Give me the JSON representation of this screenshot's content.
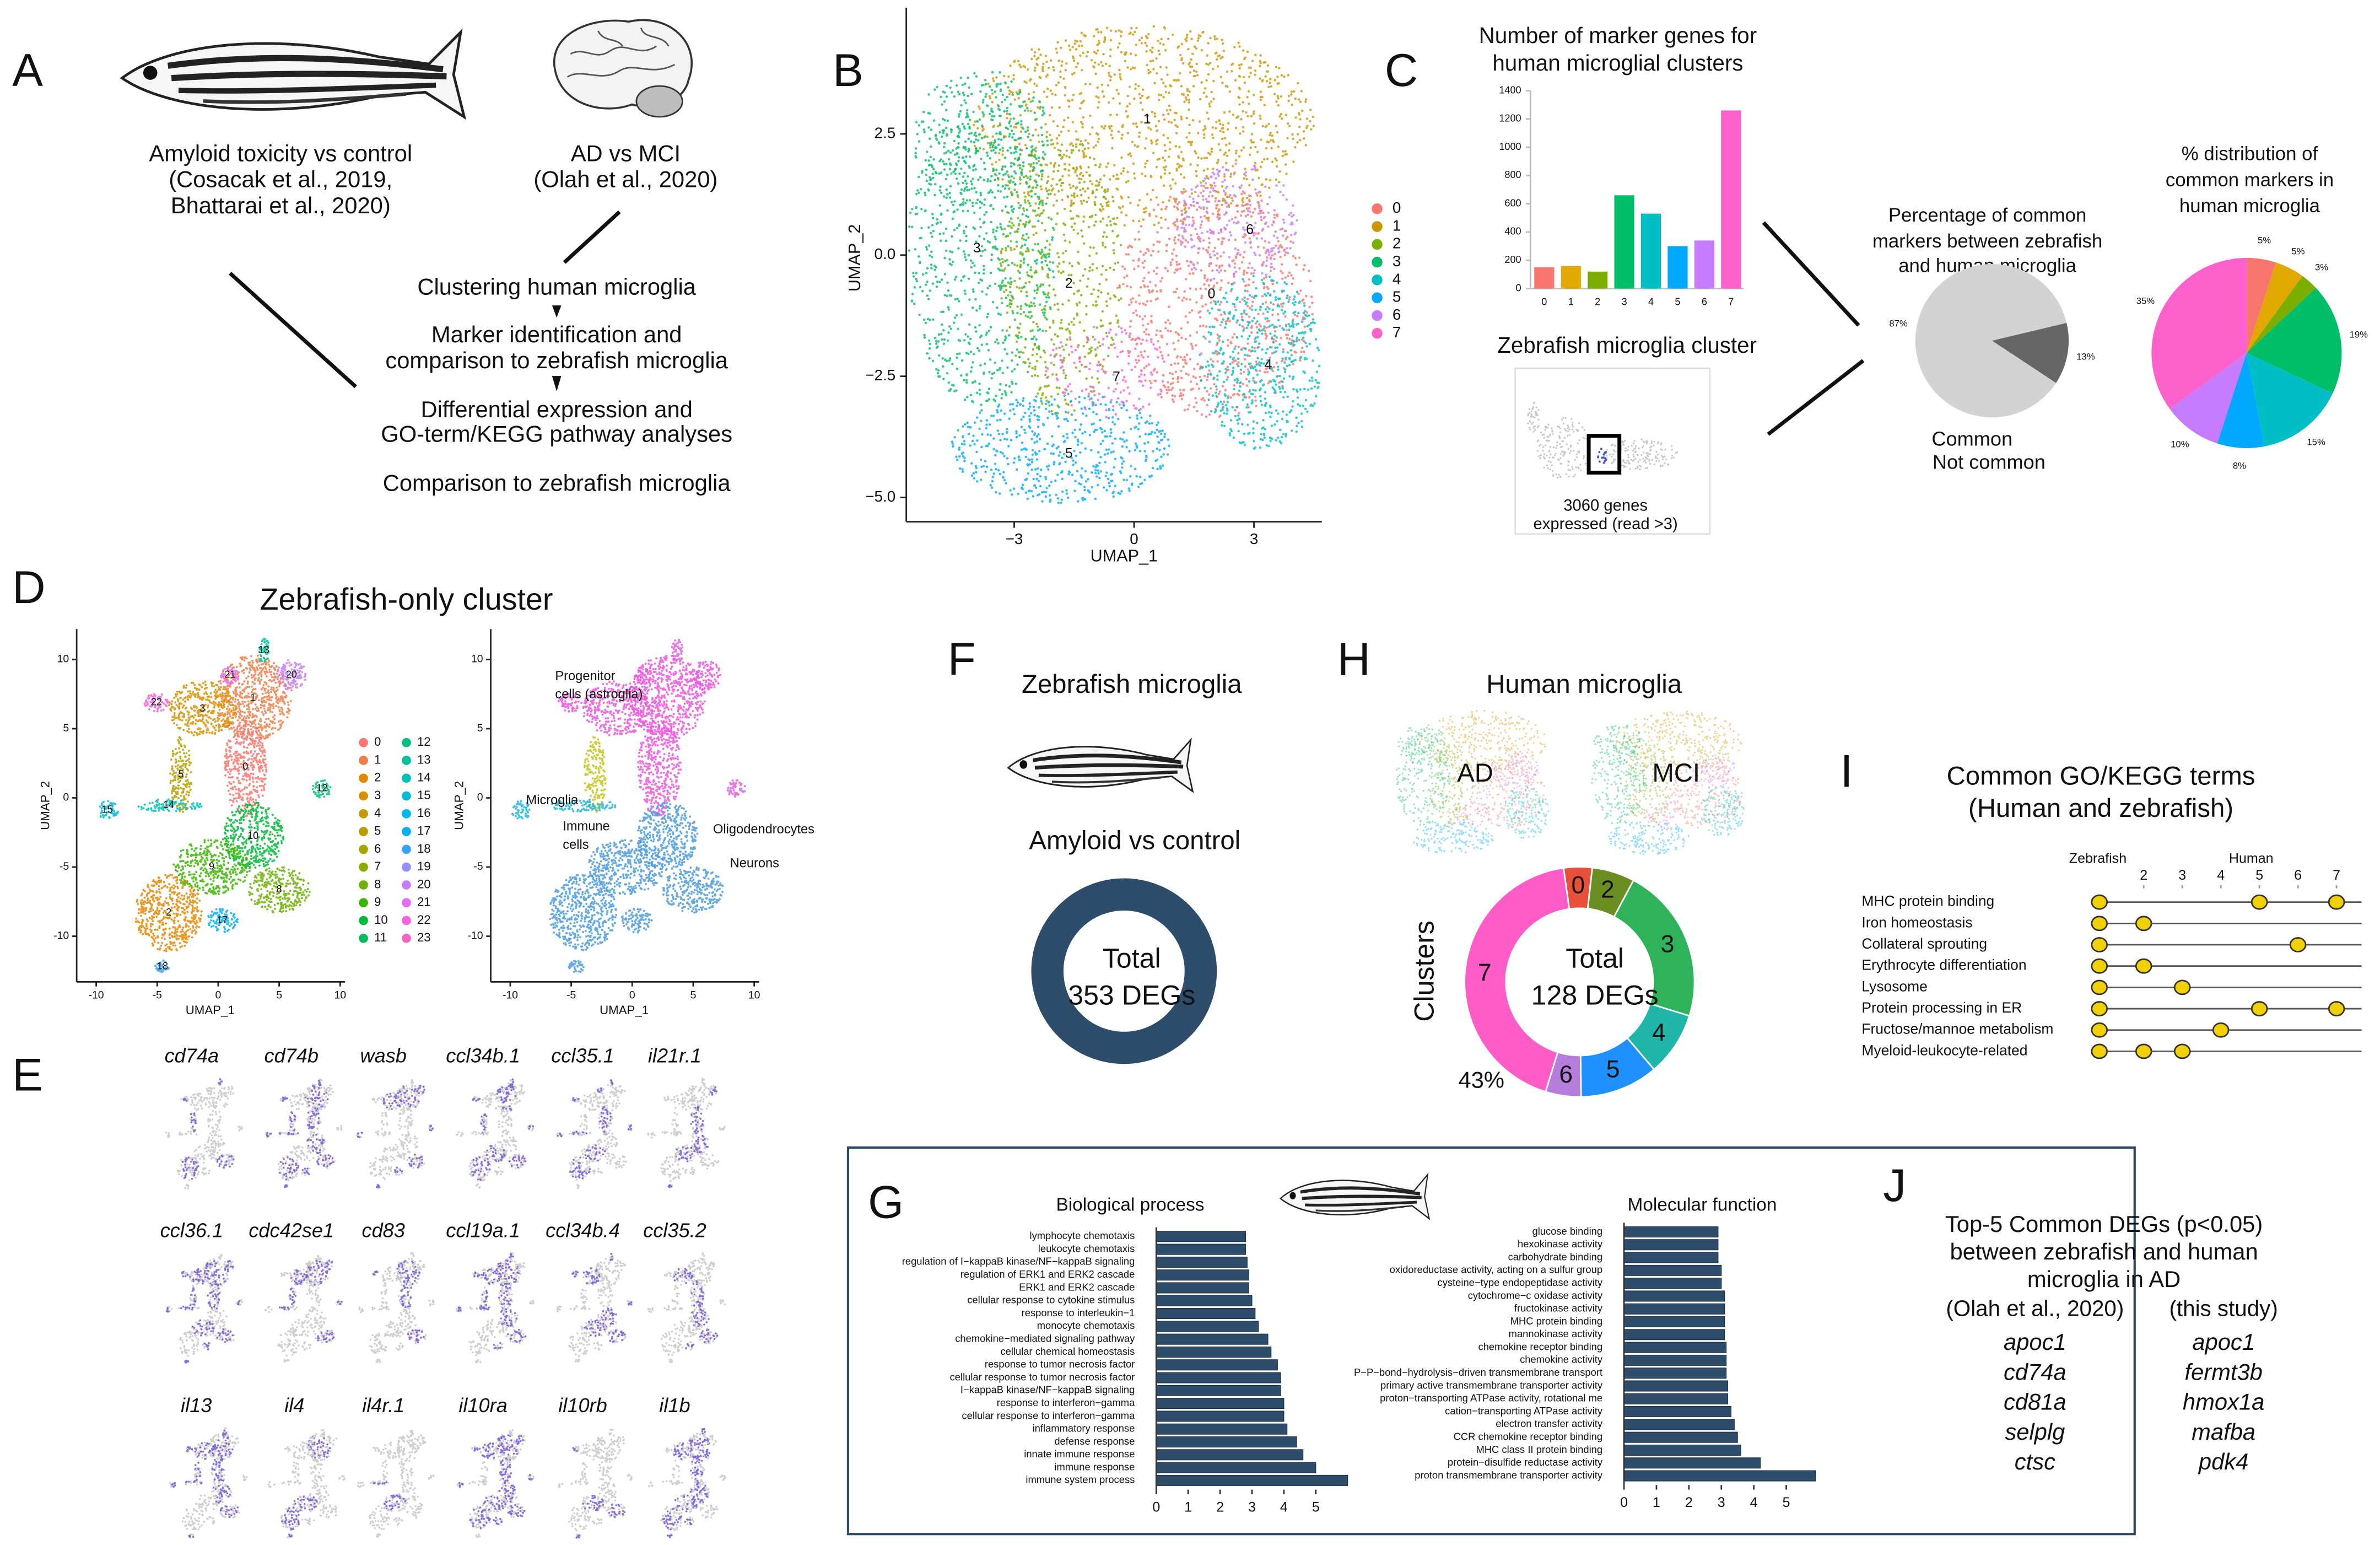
{
  "panel_labels": [
    "A",
    "B",
    "C",
    "D",
    "E",
    "F",
    "G",
    "H",
    "I",
    "J"
  ],
  "panel_a": {
    "zebrafish_comparison": [
      "Amyloid toxicity vs control",
      "(Cosacak et al., 2019,",
      "Bhattarai et al., 2020)"
    ],
    "human_comparison": [
      "AD vs MCI",
      "(Olah et al., 2020)"
    ],
    "steps": [
      [
        "Clustering human microglia"
      ],
      [
        "Marker identification and",
        "comparison to zebrafish microglia"
      ],
      [
        "Differential expression and",
        "GO-term/KEGG pathway analyses"
      ],
      [
        "Comparison to zebrafish microglia"
      ]
    ]
  },
  "panel_c": {
    "cluster_title": "Zebrafish microglia cluster",
    "cluster_note": [
      "3060 genes",
      "expressed (read >3)"
    ]
  },
  "panel_d": {
    "title": "Zebrafish-only cluster"
  },
  "panel_e": {
    "genes": [
      [
        "cd74a",
        "cd74b",
        "wasb",
        "ccl34b.1",
        "ccl35.1",
        "il21r.1"
      ],
      [
        "ccl36.1",
        "cdc42se1",
        "cd83",
        "ccl19a.1",
        "ccl34b.4",
        "ccl35.2"
      ],
      [
        "il13",
        "il4",
        "il4r.1",
        "il10ra",
        "il10rb",
        "il1b"
      ]
    ]
  },
  "panel_f": {
    "title": "Zebrafish microglia",
    "subtitle": "Amyloid vs control",
    "center_label": [
      "Total",
      "353 DEGs"
    ]
  },
  "panel_h": {
    "title": "Human microglia",
    "groups": [
      "AD",
      "MCI"
    ]
  },
  "panel_j": {
    "title": [
      "Top-5 Common DEGs (p<0.05)",
      "between zebrafish and human",
      "microglia in AD"
    ],
    "sources": [
      {
        "name": "(Olah et al., 2020)",
        "color": "#7030a0",
        "gene_color": "#a050c0",
        "genes": [
          "apoc1",
          "cd74a",
          "cd81a",
          "selplg",
          "ctsc"
        ]
      },
      {
        "name": "(this study)",
        "color": "#b2182b",
        "gene_color": "#c0161f",
        "genes": [
          "apoc1",
          "fermt3b",
          "hmox1a",
          "mafba",
          "pdk4"
        ]
      }
    ]
  },
  "chart_data": [
    {
      "type": "scatter",
      "xlabel": "UMAP_1",
      "ylabel": "UMAP_2",
      "xlim": [
        -5.7,
        4.7
      ],
      "ylim": [
        -5.5,
        5.1
      ],
      "xticks": [
        {
          "value": -3,
          "label": "−3"
        },
        0,
        3
      ],
      "yticks": [
        {
          "value": -5,
          "label": "−5.0"
        },
        {
          "value": -2.5,
          "label": "−2.5"
        },
        {
          "value": 0,
          "label": "0.0"
        },
        2.5
      ],
      "legend": {
        "categories": [
          "0",
          "1",
          "2",
          "3",
          "4",
          "5",
          "6",
          "7"
        ],
        "colors": [
          "#F8766D",
          "#CD9600",
          "#7CAE00",
          "#00BE67",
          "#00BFC4",
          "#00A9FF",
          "#C77CFF",
          "#FF61CC"
        ]
      }
    },
    {
      "type": "bar",
      "title": [
        "Number of marker genes for",
        "human microglial clusters"
      ],
      "categories": [
        "0",
        "1",
        "2",
        "3",
        "4",
        "5",
        "6",
        "7"
      ],
      "values": [
        150,
        160,
        120,
        660,
        530,
        300,
        340,
        1260
      ],
      "colors": [
        "#F8766D",
        "#E0A800",
        "#7CAE00",
        "#00BE67",
        "#00BFC4",
        "#00A9FF",
        "#C77CFF",
        "#FF61CC"
      ],
      "ylim": [
        0,
        1400
      ],
      "yticks": [
        0,
        200,
        400,
        600,
        800,
        1000,
        1200,
        1400
      ]
    },
    {
      "type": "pie",
      "title": [
        "Percentage of common",
        "markers between zebrafish",
        "and human microglia"
      ],
      "values": [
        87,
        13
      ],
      "value_labels": [
        "87%",
        "13%"
      ],
      "colors": [
        "#d3d3d3",
        "#666666"
      ],
      "legend": [
        "Common",
        "Not common"
      ],
      "legend_colors": [
        "#a8a8a8",
        "#444444"
      ]
    },
    {
      "type": "pie",
      "title": [
        "% distribution of",
        "common markers in",
        "human microglia"
      ],
      "values": [
        5,
        5,
        3,
        19,
        15,
        8,
        10,
        35
      ],
      "value_labels": [
        "5%",
        "5%",
        "3%",
        "19%",
        "15%",
        "8%",
        "10%",
        "35%"
      ],
      "colors": [
        "#F8766D",
        "#E0A800",
        "#7CAE00",
        "#00BE67",
        "#00BFC4",
        "#00A9FF",
        "#C77CFF",
        "#FF61CC"
      ]
    },
    {
      "type": "scatter",
      "xlabel": "UMAP_1",
      "ylabel": "UMAP_2",
      "xlim": [
        -11.6,
        10.4
      ],
      "ylim": [
        -13.3,
        12.2
      ],
      "xticks": [
        -10,
        -5,
        0,
        5,
        10
      ],
      "yticks": [
        -10,
        -5,
        0,
        5,
        10
      ],
      "legend": {
        "categories": [
          "0",
          "1",
          "2",
          "3",
          "4",
          "5",
          "6",
          "7",
          "8",
          "9",
          "10",
          "11",
          "12",
          "13",
          "14",
          "15",
          "16",
          "17",
          "18",
          "19",
          "20",
          "21",
          "22",
          "23"
        ],
        "colors": [
          "#F8766D",
          "#EF7F49",
          "#E58700",
          "#D89000",
          "#C99800",
          "#B79F00",
          "#A3A500",
          "#8AAB00",
          "#6BB100",
          "#39B600",
          "#00BA38",
          "#00BD5C",
          "#00BF7D",
          "#00C19A",
          "#00C1B4",
          "#00BCD8",
          "#00B8E7",
          "#00B0F6",
          "#35A2FF",
          "#9590FF",
          "#C77CFF",
          "#E76BF3",
          "#FA62DB",
          "#FF62BC"
        ]
      }
    },
    {
      "type": "scatter",
      "xlabel": "UMAP_1",
      "ylabel": "UMAP_2",
      "xlim": [
        -11.6,
        10.4
      ],
      "ylim": [
        -13.3,
        12.2
      ],
      "xticks": [
        -10,
        -5,
        0,
        5,
        10
      ],
      "yticks": [
        -10,
        -5,
        0,
        5,
        10
      ],
      "annotations": [
        {
          "lines": [
            "Progenitor",
            "cells (astroglia)"
          ],
          "color": "#ee55dd"
        },
        {
          "lines": [
            "Microglia"
          ],
          "color": "#22b5dd"
        },
        {
          "lines": [
            "Immune",
            "cells"
          ],
          "color": "#c4c418"
        },
        {
          "lines": [
            "Oligodendrocytes"
          ],
          "color": "#e060e0"
        },
        {
          "lines": [
            "Neurons"
          ],
          "color": "#4a9be0"
        }
      ]
    },
    {
      "type": "donut",
      "ylabel": "Clusters",
      "categories": [
        "0",
        "2",
        "3",
        "4",
        "5",
        "6",
        "7"
      ],
      "values": [
        4,
        6,
        22,
        9,
        11,
        5,
        43
      ],
      "colors": [
        "#e8503a",
        "#6b8e23",
        "#2fb35a",
        "#1fb5a8",
        "#1e90ff",
        "#b57edc",
        "#ff5cc8"
      ],
      "center_label": [
        "Total",
        "128 DEGs"
      ],
      "annotation": "43%"
    },
    {
      "type": "dot",
      "title": [
        "Common GO/KEGG terms",
        "(Human and zebrafish)"
      ],
      "columns": [
        "Zebrafish",
        "Human"
      ],
      "xlim": [
        0.85,
        7.65
      ],
      "xticks": [
        2,
        3,
        4,
        5,
        6,
        7
      ],
      "rows": [
        {
          "term": "MHC protein binding",
          "human": [
            5,
            7
          ]
        },
        {
          "term": "Iron homeostasis",
          "human": [
            2
          ]
        },
        {
          "term": "Collateral sprouting",
          "human": [
            6
          ]
        },
        {
          "term": "Erythrocyte differentiation",
          "human": [
            2
          ]
        },
        {
          "term": "Lysosome",
          "human": [
            3
          ]
        },
        {
          "term": "Protein processing in ER",
          "human": [
            5,
            7
          ]
        },
        {
          "term": "Fructose/mannoe metabolism",
          "human": [
            4
          ]
        },
        {
          "term": "Myeloid-leukocyte-related",
          "human": [
            2,
            3
          ]
        }
      ]
    },
    {
      "type": "hbar",
      "title": "Biological process",
      "xlim": [
        0,
        6.2
      ],
      "xticks": [
        0,
        1,
        2,
        3,
        4,
        5
      ],
      "color": "#2d4d6b",
      "categories": [
        "lymphocyte chemotaxis",
        "leukocyte chemotaxis",
        "regulation of I−kappaB kinase/NF−kappaB signaling",
        "regulation of ERK1 and ERK2 cascade",
        "ERK1 and ERK2 cascade",
        "cellular response to cytokine stimulus",
        "response to interleukin−1",
        "monocyte chemotaxis",
        "chemokine−mediated signaling pathway",
        "cellular chemical homeostasis",
        "response to tumor necrosis factor",
        "cellular response to tumor necrosis factor",
        "I−kappaB kinase/NF−kappaB signaling",
        "response to interferon−gamma",
        "cellular response to interferon−gamma",
        "inflammatory response",
        "defense response",
        "innate immune response",
        "immune response",
        "immune system process"
      ],
      "values": [
        2.8,
        2.8,
        2.85,
        2.9,
        2.9,
        3.0,
        3.1,
        3.2,
        3.5,
        3.6,
        3.8,
        3.9,
        3.9,
        4.0,
        4.0,
        4.1,
        4.4,
        4.6,
        5.0,
        6.0
      ]
    },
    {
      "type": "hbar",
      "title": "Molecular function",
      "xlim": [
        0,
        6
      ],
      "xticks": [
        0,
        1,
        2,
        3,
        4,
        5
      ],
      "color": "#2d4d6b",
      "categories": [
        "glucose binding",
        "hexokinase activity",
        "carbohydrate binding",
        "oxidoreductase activity, acting on a sulfur group",
        "cysteine−type endopeptidase activity",
        "cytochrome−c oxidase activity",
        "fructokinase activity",
        "MHC protein binding",
        "mannokinase activity",
        "chemokine receptor binding",
        "chemokine activity",
        "P−P−bond−hydrolysis−driven transmembrane transport",
        "primary active transmembrane transporter activity",
        "proton−transporting ATPase activity, rotational me",
        "cation−transporting ATPase activity",
        "electron transfer activity",
        "CCR chemokine receptor binding",
        "MHC class II protein binding",
        "protein−disulfide reductase activity",
        "proton transmembrane transporter activity"
      ],
      "values": [
        2.9,
        2.9,
        2.9,
        3.0,
        3.0,
        3.1,
        3.1,
        3.1,
        3.1,
        3.15,
        3.15,
        3.15,
        3.2,
        3.2,
        3.3,
        3.4,
        3.5,
        3.6,
        4.2,
        5.9
      ]
    }
  ]
}
